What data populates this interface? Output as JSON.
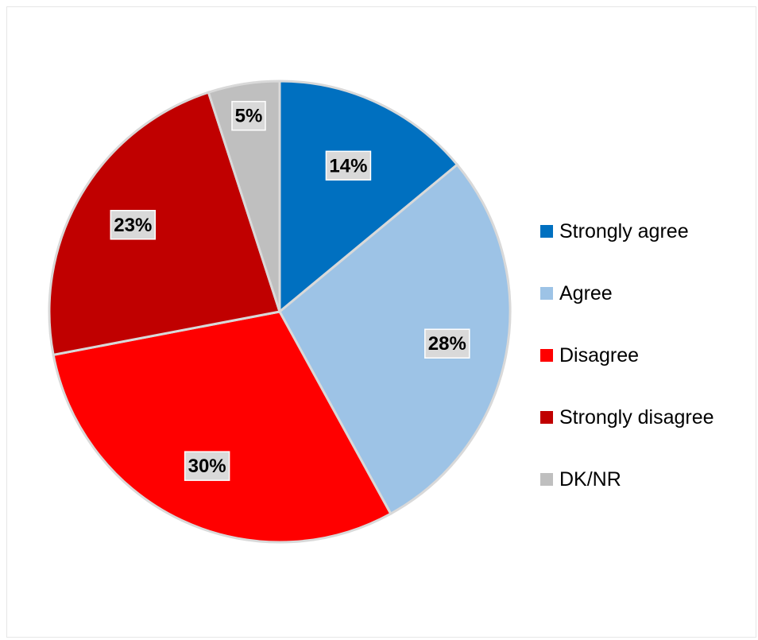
{
  "chart_data": {
    "type": "pie",
    "title": "",
    "categories": [
      "Strongly agree",
      "Agree",
      "Disagree",
      "Strongly disagree",
      "DK/NR"
    ],
    "values": [
      14,
      28,
      30,
      23,
      5
    ],
    "value_labels": [
      "14%",
      "28%",
      "30%",
      "23%",
      "5%"
    ],
    "colors": [
      "#0070c0",
      "#9dc3e6",
      "#ff0000",
      "#c00000",
      "#bfbfbf"
    ],
    "start_angle": "12 o'clock",
    "direction": "clockwise",
    "legend_position": "right"
  }
}
